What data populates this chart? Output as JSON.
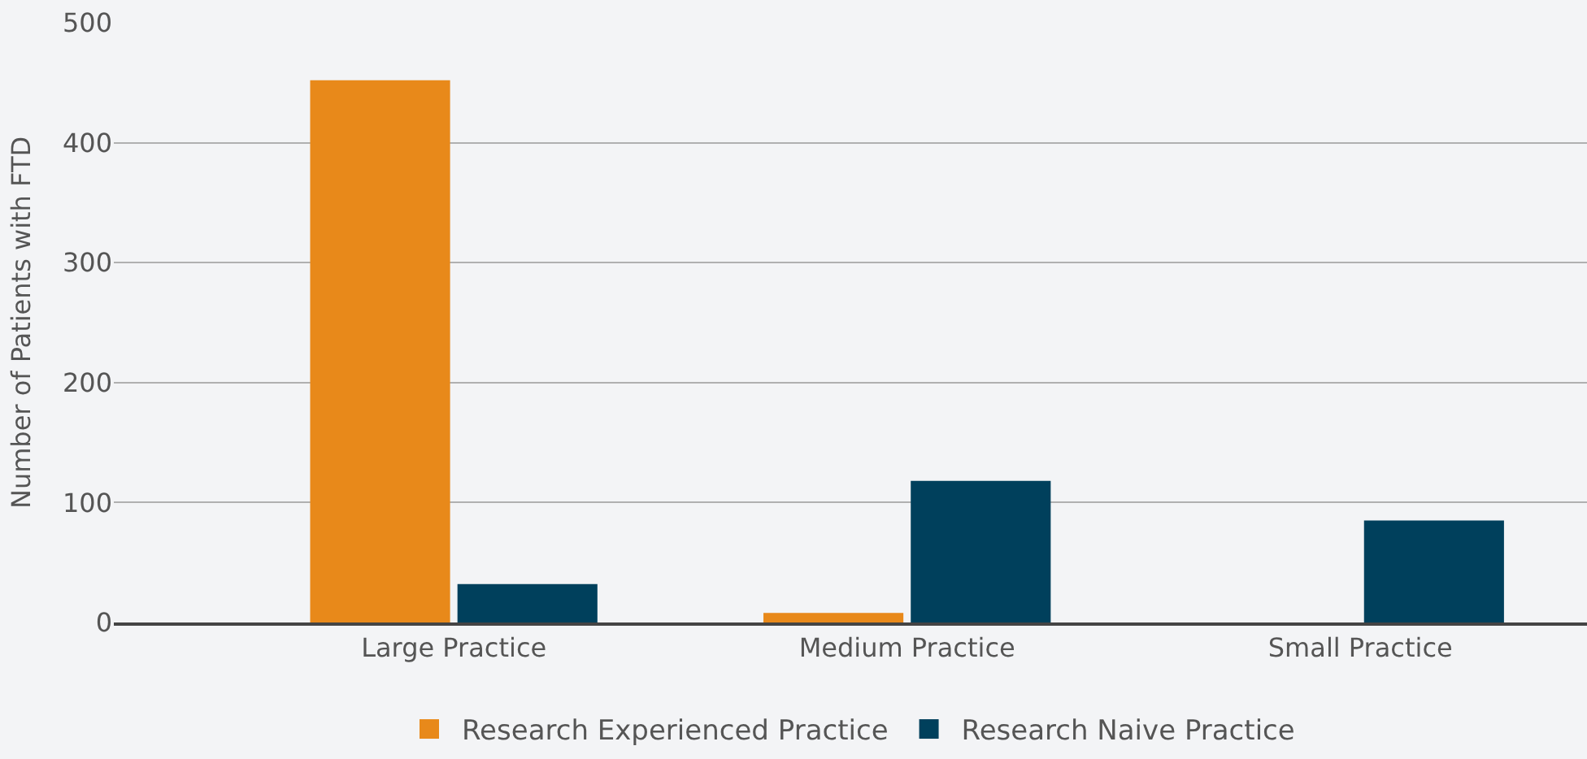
{
  "chart_data": {
    "type": "bar",
    "ylabel": "Number of Patients with FTD",
    "categories": [
      "Large Practice",
      "Medium Practice",
      "Small Practice"
    ],
    "series": [
      {
        "name": "Research Experienced Practice",
        "color": "#e8891a",
        "values": [
          452,
          8,
          0
        ]
      },
      {
        "name": "Research Naive Practice",
        "color": "#00405c",
        "values": [
          32,
          118,
          85
        ]
      }
    ],
    "ylim": [
      0,
      500
    ],
    "yticks": [
      0,
      100,
      200,
      300,
      400,
      500
    ],
    "grid": "y",
    "legend": "bottom"
  }
}
